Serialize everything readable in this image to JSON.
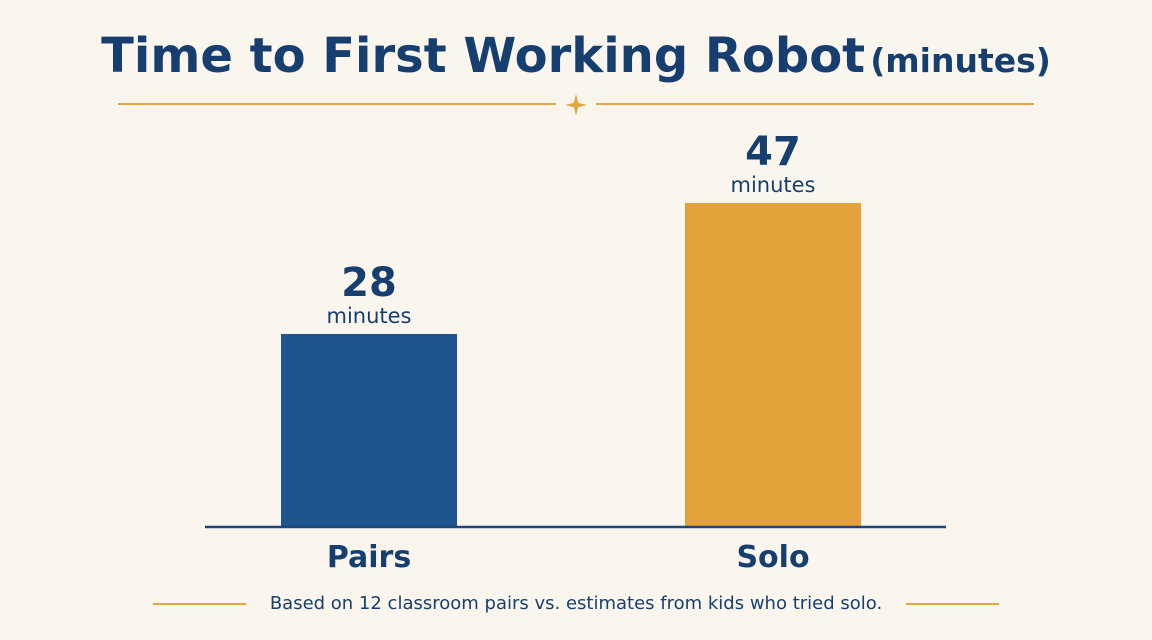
{
  "title": {
    "main": "Time to First Working Robot",
    "unit": "(minutes)"
  },
  "footnote": "Based on 12 classroom pairs vs. estimates from kids who tried solo.",
  "colors": {
    "background": "#faf6ee",
    "text": "#163f6f",
    "accent": "#e0a83e",
    "pairs_bar": "#1e5390",
    "solo_bar": "#e2a239",
    "axis": "#1b4677"
  },
  "icons": {
    "divider": "sparkle-star-icon"
  },
  "chart_data": {
    "type": "bar",
    "title": "Time to First Working Robot (minutes)",
    "categories": [
      "Pairs",
      "Solo"
    ],
    "values": [
      28,
      47
    ],
    "value_labels": [
      "28",
      "47"
    ],
    "unit_label": "minutes",
    "bar_colors": [
      "#1e5390",
      "#e2a239"
    ],
    "xlabel": "",
    "ylabel": "",
    "ylim": [
      0,
      47
    ],
    "grid": false,
    "legend": "none"
  }
}
